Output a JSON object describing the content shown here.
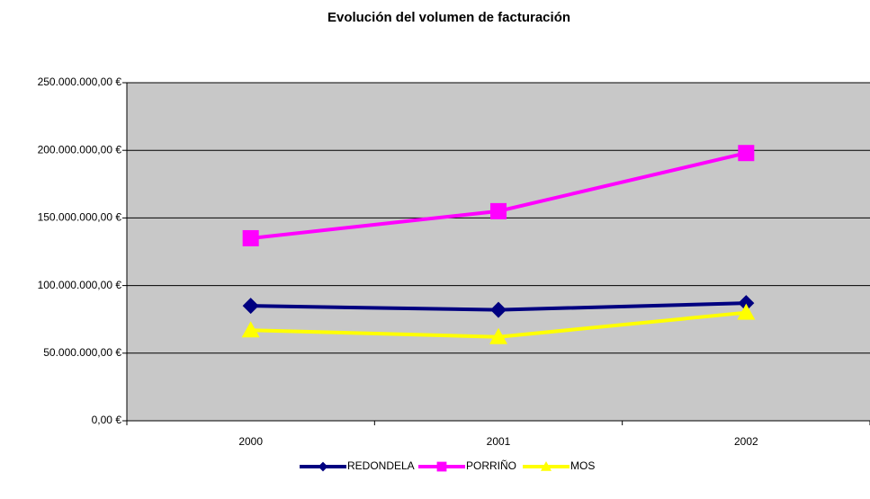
{
  "chart_data": {
    "type": "line",
    "title": "Evolución del volumen de facturación",
    "categories": [
      "2000",
      "2001",
      "2002"
    ],
    "series": [
      {
        "name": "REDONDELA",
        "color": "#000080",
        "marker": "diamond",
        "values": [
          85000000,
          82000000,
          87000000
        ]
      },
      {
        "name": "PORRIÑO",
        "color": "#ff00ff",
        "marker": "square",
        "values": [
          135000000,
          155000000,
          198000000
        ]
      },
      {
        "name": "MOS",
        "color": "#ffff00",
        "marker": "triangle",
        "values": [
          67000000,
          62000000,
          80000000
        ]
      }
    ],
    "ylim": [
      0,
      250000000
    ],
    "yticks": [
      {
        "value": 0,
        "label": "0,00 €"
      },
      {
        "value": 50000000,
        "label": "50.000.000,00 €"
      },
      {
        "value": 100000000,
        "label": "100.000.000,00 €"
      },
      {
        "value": 150000000,
        "label": "150.000.000,00 €"
      },
      {
        "value": 200000000,
        "label": "200.000.000,00 €"
      },
      {
        "value": 250000000,
        "label": "250.000.000,00 €"
      }
    ],
    "grid": true,
    "legend": "bottom"
  }
}
